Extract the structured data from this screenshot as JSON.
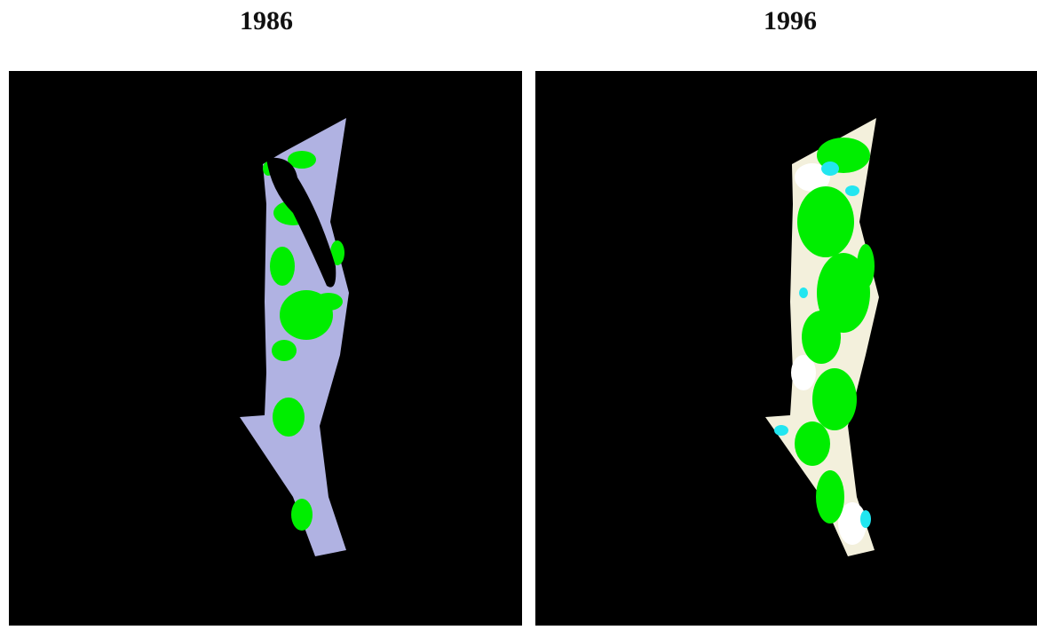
{
  "panels": [
    {
      "title": "1986"
    },
    {
      "title": "1996"
    }
  ]
}
